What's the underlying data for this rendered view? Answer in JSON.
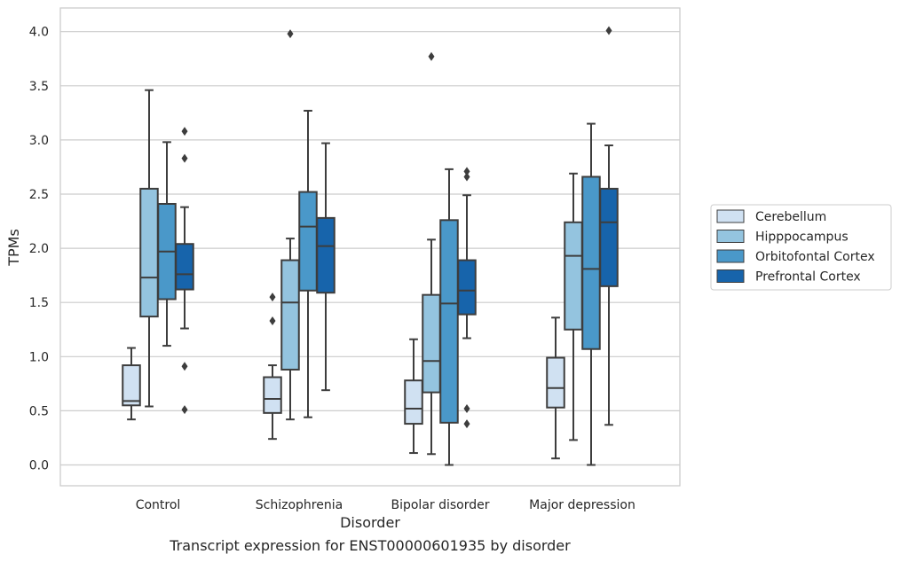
{
  "caption": "Transcript expression for ENST00000601935 by disorder",
  "chart_data": {
    "type": "boxplot",
    "title": "",
    "xlabel": "Disorder",
    "ylabel": "TPMs",
    "ylim": [
      -0.2,
      4.22
    ],
    "yticks": [
      0.0,
      0.5,
      1.0,
      1.5,
      2.0,
      2.5,
      3.0,
      3.5,
      4.0
    ],
    "ytick_labels": [
      "0.0",
      "0.5",
      "1.0",
      "1.5",
      "2.0",
      "2.5",
      "3.0",
      "3.5",
      "4.0"
    ],
    "grid": "y",
    "legend_position": "outside-right",
    "categories": [
      "Control",
      "Schizophrenia",
      "Bipolar disorder",
      "Major depression"
    ],
    "series": [
      {
        "name": "Cerebellum",
        "color": "#d0e1f2",
        "boxes": [
          {
            "whislo": 0.42,
            "q1": 0.55,
            "med": 0.59,
            "q3": 0.92,
            "whishi": 1.08,
            "fliers": []
          },
          {
            "whislo": 0.24,
            "q1": 0.48,
            "med": 0.61,
            "q3": 0.81,
            "whishi": 0.92,
            "fliers": [
              1.33,
              1.55
            ]
          },
          {
            "whislo": 0.11,
            "q1": 0.38,
            "med": 0.52,
            "q3": 0.78,
            "whishi": 1.16,
            "fliers": []
          },
          {
            "whislo": 0.06,
            "q1": 0.53,
            "med": 0.71,
            "q3": 0.99,
            "whishi": 1.36,
            "fliers": []
          }
        ]
      },
      {
        "name": "Hipppocampus",
        "color": "#94c4df",
        "boxes": [
          {
            "whislo": 0.54,
            "q1": 1.37,
            "med": 1.73,
            "q3": 2.55,
            "whishi": 3.46,
            "fliers": []
          },
          {
            "whislo": 0.42,
            "q1": 0.88,
            "med": 1.5,
            "q3": 1.89,
            "whishi": 2.09,
            "fliers": [
              3.98
            ]
          },
          {
            "whislo": 0.1,
            "q1": 0.67,
            "med": 0.96,
            "q3": 1.57,
            "whishi": 2.08,
            "fliers": [
              3.77
            ]
          },
          {
            "whislo": 0.23,
            "q1": 1.25,
            "med": 1.93,
            "q3": 2.24,
            "whishi": 2.69,
            "fliers": []
          }
        ]
      },
      {
        "name": "Orbitofontal Cortex",
        "color": "#4a98c9",
        "boxes": [
          {
            "whislo": 1.1,
            "q1": 1.53,
            "med": 1.97,
            "q3": 2.41,
            "whishi": 2.98,
            "fliers": []
          },
          {
            "whislo": 0.44,
            "q1": 1.61,
            "med": 2.2,
            "q3": 2.52,
            "whishi": 3.27,
            "fliers": []
          },
          {
            "whislo": 0.0,
            "q1": 0.39,
            "med": 1.49,
            "q3": 2.26,
            "whishi": 2.73,
            "fliers": []
          },
          {
            "whislo": 0.0,
            "q1": 1.07,
            "med": 1.81,
            "q3": 2.66,
            "whishi": 3.15,
            "fliers": []
          }
        ]
      },
      {
        "name": "Prefrontal Cortex",
        "color": "#1764ab",
        "boxes": [
          {
            "whislo": 1.26,
            "q1": 1.62,
            "med": 1.76,
            "q3": 2.04,
            "whishi": 2.38,
            "fliers": [
              0.51,
              0.91,
              2.83,
              3.08
            ]
          },
          {
            "whislo": 0.69,
            "q1": 1.59,
            "med": 2.02,
            "q3": 2.28,
            "whishi": 2.97,
            "fliers": []
          },
          {
            "whislo": 1.17,
            "q1": 1.39,
            "med": 1.61,
            "q3": 1.89,
            "whishi": 2.49,
            "fliers": [
              0.38,
              0.52,
              2.66,
              2.71
            ]
          },
          {
            "whislo": 0.37,
            "q1": 1.65,
            "med": 2.24,
            "q3": 2.55,
            "whishi": 2.95,
            "fliers": [
              4.01
            ]
          }
        ]
      }
    ]
  }
}
